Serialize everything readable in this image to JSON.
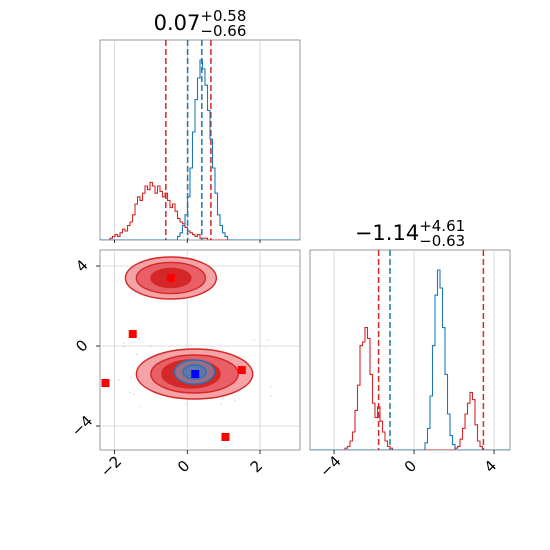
{
  "chart_data": {
    "type": "corner",
    "parameters": [
      {
        "title_value": "0.07",
        "title_plus": "+0.58",
        "title_minus": "−0.66",
        "range": [
          -2.4,
          3.1
        ],
        "ticks": [
          -2,
          0,
          2
        ],
        "tick_labels": [
          "−2",
          "0",
          "2"
        ]
      },
      {
        "title_value": "−1.14",
        "title_plus": "+4.61",
        "title_minus": "−0.63",
        "range": [
          -5.2,
          4.8
        ],
        "ticks": [
          -4,
          0,
          4
        ],
        "tick_labels": [
          "−4",
          "0",
          "4"
        ]
      }
    ],
    "grid": true,
    "series": [
      {
        "color": "#1f77b4",
        "marg1_hist": [
          0,
          0,
          0,
          0,
          0,
          0,
          0,
          0,
          0,
          0,
          0,
          0,
          0,
          0,
          0,
          0,
          0,
          0,
          0,
          0,
          0,
          0,
          0,
          0,
          0,
          0,
          0,
          0,
          0,
          0,
          0,
          0.02,
          0.04,
          0.08,
          0.14,
          0.24,
          0.4,
          0.6,
          0.78,
          0.9,
          1.0,
          0.95,
          0.86,
          0.72,
          0.56,
          0.4,
          0.26,
          0.14,
          0.08,
          0.04,
          0.02,
          0,
          0,
          0,
          0,
          0,
          0,
          0,
          0,
          0,
          0,
          0,
          0,
          0,
          0,
          0,
          0,
          0,
          0,
          0,
          0,
          0,
          0,
          0,
          0,
          0,
          0,
          0,
          0,
          0
        ],
        "marg1_lines": [
          0.01,
          0.4
        ],
        "marg2_hist": [
          0,
          0,
          0,
          0,
          0,
          0,
          0,
          0,
          0,
          0,
          0,
          0,
          0,
          0,
          0,
          0,
          0,
          0,
          0,
          0,
          0,
          0,
          0,
          0,
          0,
          0,
          0,
          0,
          0,
          0,
          0,
          0,
          0,
          0,
          0,
          0,
          0,
          0,
          0,
          0,
          0,
          0,
          0,
          0,
          0,
          0,
          0.04,
          0.12,
          0.3,
          0.58,
          0.86,
          1.0,
          0.9,
          0.68,
          0.42,
          0.2,
          0.08,
          0.03,
          0,
          0,
          0,
          0,
          0,
          0,
          0,
          0,
          0,
          0,
          0,
          0,
          0,
          0,
          0,
          0,
          0,
          0,
          0,
          0,
          0,
          0
        ],
        "marg2_lines": [
          -1.2
        ],
        "contours": [
          {
            "cx": 0.2,
            "cy": -1.3,
            "rx": 0.55,
            "ry": 0.6
          },
          {
            "cx": 0.2,
            "cy": -1.3,
            "rx": 0.32,
            "ry": 0.35
          }
        ]
      },
      {
        "color": "#d62728",
        "marg1_hist": [
          0,
          0,
          0,
          0,
          0.01,
          0.02,
          0.03,
          0.02,
          0.04,
          0.06,
          0.05,
          0.08,
          0.1,
          0.14,
          0.2,
          0.24,
          0.22,
          0.26,
          0.3,
          0.28,
          0.32,
          0.3,
          0.26,
          0.3,
          0.27,
          0.24,
          0.26,
          0.22,
          0.18,
          0.2,
          0.16,
          0.12,
          0.1,
          0.09,
          0.07,
          0.05,
          0.04,
          0.03,
          0.02,
          0.03,
          0.01,
          0.01,
          0.01,
          0,
          0,
          0,
          0,
          0,
          0,
          0,
          0,
          0,
          0,
          0,
          0,
          0,
          0,
          0,
          0,
          0,
          0,
          0,
          0,
          0,
          0,
          0,
          0,
          0,
          0,
          0,
          0,
          0,
          0,
          0,
          0,
          0,
          0,
          0,
          0,
          0
        ],
        "marg1_lines": [
          -0.59,
          0.65
        ],
        "marg2_hist": [
          0,
          0,
          0,
          0,
          0,
          0,
          0,
          0,
          0,
          0,
          0,
          0,
          0,
          0,
          0.01,
          0.02,
          0.05,
          0.1,
          0.22,
          0.36,
          0.58,
          0.6,
          0.68,
          0.62,
          0.42,
          0.26,
          0.18,
          0.24,
          0.16,
          0.1,
          0.05,
          0.02,
          0.01,
          0,
          0,
          0,
          0,
          0,
          0,
          0,
          0,
          0,
          0,
          0,
          0,
          0,
          0,
          0,
          0,
          0,
          0,
          0,
          0,
          0,
          0,
          0,
          0,
          0,
          0.01,
          0.02,
          0.06,
          0.12,
          0.2,
          0.26,
          0.32,
          0.28,
          0.14,
          0.05,
          0.02,
          0,
          0,
          0,
          0,
          0,
          0,
          0,
          0,
          0,
          0,
          0
        ],
        "marg2_lines": [
          -1.77,
          3.47
        ],
        "contours": [
          {
            "cx": 0.2,
            "cy": -1.4,
            "rx": 1.6,
            "ry": 1.25
          },
          {
            "cx": 0.2,
            "cy": -1.4,
            "rx": 1.2,
            "ry": 0.95
          },
          {
            "cx": 0.1,
            "cy": -1.4,
            "rx": 0.8,
            "ry": 0.7
          },
          {
            "cx": -0.45,
            "cy": 3.4,
            "rx": 1.25,
            "ry": 1.05
          },
          {
            "cx": -0.45,
            "cy": 3.4,
            "rx": 0.95,
            "ry": 0.78
          },
          {
            "cx": -0.45,
            "cy": 3.4,
            "rx": 0.55,
            "ry": 0.48
          }
        ]
      }
    ],
    "scatter_points": [
      {
        "x": -0.45,
        "y": 3.4,
        "color": "#ff0000"
      },
      {
        "x": -1.5,
        "y": 0.6,
        "color": "#ff0000"
      },
      {
        "x": -2.25,
        "y": -1.85,
        "color": "#ff0000"
      },
      {
        "x": 1.5,
        "y": -1.2,
        "color": "#ff0000"
      },
      {
        "x": 1.05,
        "y": -4.55,
        "color": "#ff0000"
      },
      {
        "x": 0.22,
        "y": -1.4,
        "color": "#0000ff"
      }
    ]
  }
}
